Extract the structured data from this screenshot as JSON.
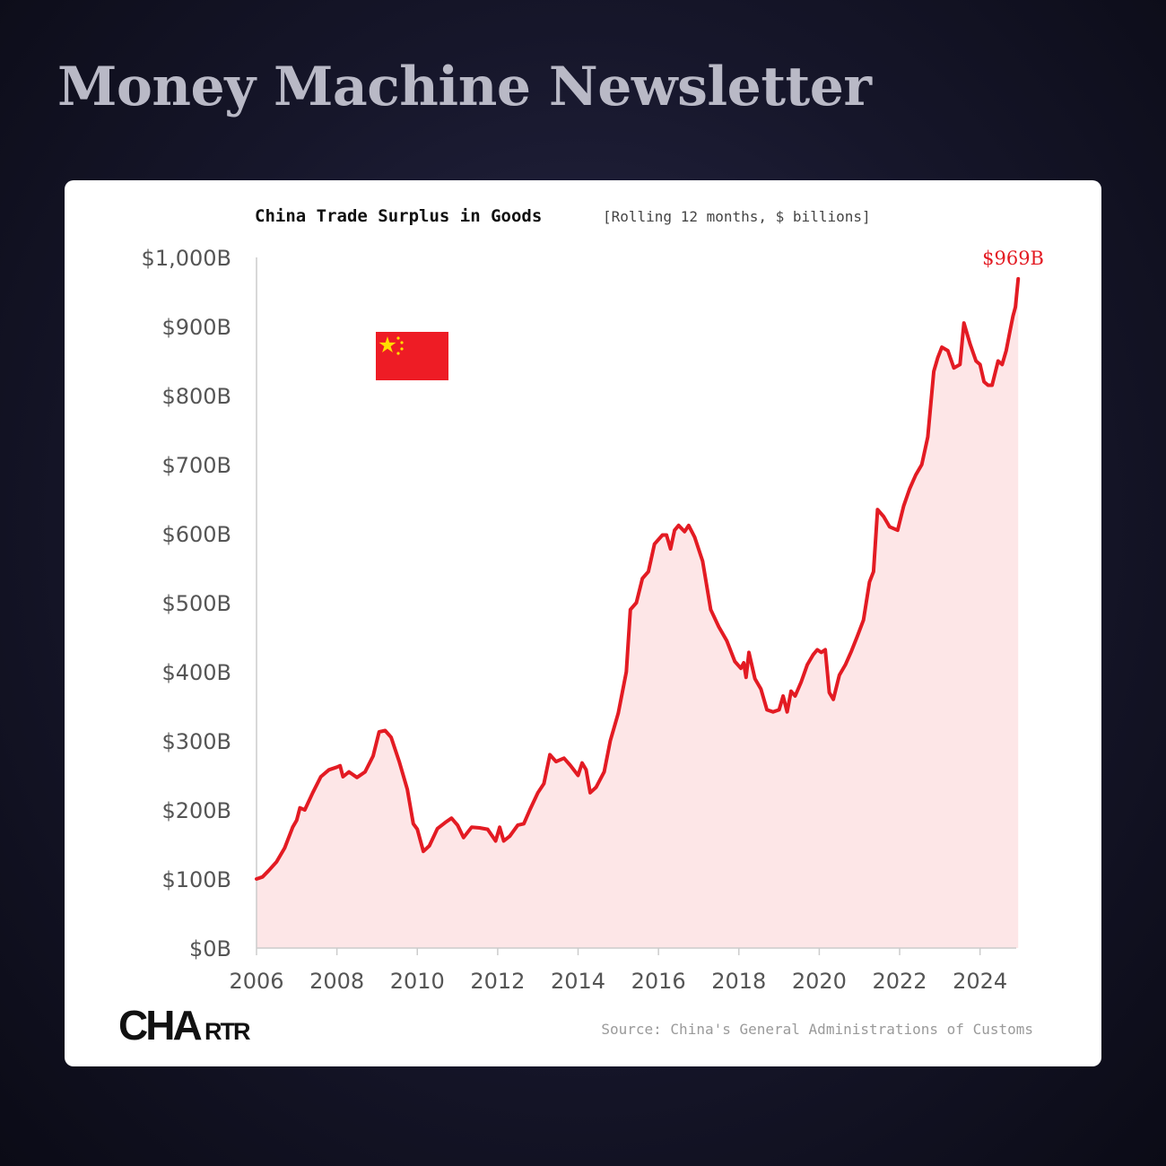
{
  "header": {
    "title": "Money Machine Newsletter"
  },
  "brand": {
    "logo_text": "CHARTR",
    "logo_main": "CHA",
    "logo_small": "RTR"
  },
  "colors": {
    "line": "#e31b23",
    "fill": "#fde6e7",
    "axis": "#cccccc",
    "flag_red": "#ee1c25",
    "flag_star": "#ffde00"
  },
  "chart_data": {
    "type": "area",
    "title": "China Trade Surplus in Goods",
    "subtitle": "[Rolling 12 months, $ billions]",
    "source": "Source: China's General Administrations of Customs",
    "icons": [
      "china-flag-icon"
    ],
    "end_label": "$969B",
    "ylim": [
      0,
      1000
    ],
    "xlim": [
      2006,
      2024.9
    ],
    "y_ticks": [
      {
        "value": 0,
        "label": "$0B"
      },
      {
        "value": 100,
        "label": "$100B"
      },
      {
        "value": 200,
        "label": "$200B"
      },
      {
        "value": 300,
        "label": "$300B"
      },
      {
        "value": 400,
        "label": "$400B"
      },
      {
        "value": 500,
        "label": "$500B"
      },
      {
        "value": 600,
        "label": "$600B"
      },
      {
        "value": 700,
        "label": "$700B"
      },
      {
        "value": 800,
        "label": "$800B"
      },
      {
        "value": 900,
        "label": "$900B"
      },
      {
        "value": 1000,
        "label": "$1,000B"
      }
    ],
    "x_ticks": [
      {
        "value": 2006,
        "label": "2006"
      },
      {
        "value": 2008,
        "label": "2008"
      },
      {
        "value": 2010,
        "label": "2010"
      },
      {
        "value": 2012,
        "label": "2012"
      },
      {
        "value": 2014,
        "label": "2014"
      },
      {
        "value": 2016,
        "label": "2016"
      },
      {
        "value": 2018,
        "label": "2018"
      },
      {
        "value": 2020,
        "label": "2020"
      },
      {
        "value": 2022,
        "label": "2022"
      },
      {
        "value": 2024,
        "label": "2024"
      }
    ],
    "series": [
      {
        "points": [
          [
            2006.0,
            100
          ],
          [
            2006.15,
            103
          ],
          [
            2006.3,
            112
          ],
          [
            2006.5,
            125
          ],
          [
            2006.7,
            145
          ],
          [
            2006.9,
            175
          ],
          [
            2007.0,
            185
          ],
          [
            2007.08,
            203
          ],
          [
            2007.2,
            200
          ],
          [
            2007.4,
            225
          ],
          [
            2007.6,
            248
          ],
          [
            2007.8,
            258
          ],
          [
            2008.0,
            262
          ],
          [
            2008.08,
            264
          ],
          [
            2008.15,
            248
          ],
          [
            2008.3,
            255
          ],
          [
            2008.5,
            247
          ],
          [
            2008.7,
            255
          ],
          [
            2008.9,
            278
          ],
          [
            2009.05,
            313
          ],
          [
            2009.2,
            315
          ],
          [
            2009.35,
            305
          ],
          [
            2009.55,
            270
          ],
          [
            2009.75,
            230
          ],
          [
            2009.9,
            180
          ],
          [
            2010.0,
            172
          ],
          [
            2010.15,
            140
          ],
          [
            2010.3,
            148
          ],
          [
            2010.5,
            173
          ],
          [
            2010.7,
            182
          ],
          [
            2010.85,
            188
          ],
          [
            2011.0,
            178
          ],
          [
            2011.15,
            160
          ],
          [
            2011.35,
            175
          ],
          [
            2011.55,
            174
          ],
          [
            2011.75,
            172
          ],
          [
            2011.95,
            155
          ],
          [
            2012.05,
            175
          ],
          [
            2012.15,
            155
          ],
          [
            2012.3,
            162
          ],
          [
            2012.5,
            178
          ],
          [
            2012.65,
            180
          ],
          [
            2012.8,
            200
          ],
          [
            2013.0,
            225
          ],
          [
            2013.15,
            238
          ],
          [
            2013.3,
            280
          ],
          [
            2013.45,
            270
          ],
          [
            2013.65,
            275
          ],
          [
            2013.8,
            265
          ],
          [
            2014.0,
            250
          ],
          [
            2014.1,
            268
          ],
          [
            2014.2,
            258
          ],
          [
            2014.3,
            225
          ],
          [
            2014.45,
            233
          ],
          [
            2014.65,
            255
          ],
          [
            2014.8,
            300
          ],
          [
            2015.0,
            340
          ],
          [
            2015.2,
            400
          ],
          [
            2015.3,
            490
          ],
          [
            2015.45,
            500
          ],
          [
            2015.6,
            535
          ],
          [
            2015.75,
            545
          ],
          [
            2015.9,
            585
          ],
          [
            2016.1,
            598
          ],
          [
            2016.2,
            598
          ],
          [
            2016.3,
            578
          ],
          [
            2016.4,
            605
          ],
          [
            2016.5,
            612
          ],
          [
            2016.65,
            603
          ],
          [
            2016.75,
            612
          ],
          [
            2016.9,
            595
          ],
          [
            2017.1,
            560
          ],
          [
            2017.3,
            490
          ],
          [
            2017.5,
            465
          ],
          [
            2017.7,
            445
          ],
          [
            2017.9,
            415
          ],
          [
            2018.05,
            405
          ],
          [
            2018.12,
            413
          ],
          [
            2018.18,
            392
          ],
          [
            2018.25,
            428
          ],
          [
            2018.4,
            390
          ],
          [
            2018.55,
            375
          ],
          [
            2018.7,
            345
          ],
          [
            2018.85,
            342
          ],
          [
            2019.0,
            345
          ],
          [
            2019.1,
            365
          ],
          [
            2019.2,
            342
          ],
          [
            2019.3,
            372
          ],
          [
            2019.4,
            365
          ],
          [
            2019.55,
            385
          ],
          [
            2019.7,
            410
          ],
          [
            2019.85,
            425
          ],
          [
            2019.95,
            432
          ],
          [
            2020.05,
            428
          ],
          [
            2020.15,
            432
          ],
          [
            2020.25,
            370
          ],
          [
            2020.35,
            360
          ],
          [
            2020.5,
            395
          ],
          [
            2020.65,
            410
          ],
          [
            2020.8,
            430
          ],
          [
            2020.95,
            452
          ],
          [
            2021.1,
            475
          ],
          [
            2021.25,
            530
          ],
          [
            2021.35,
            545
          ],
          [
            2021.45,
            635
          ],
          [
            2021.6,
            625
          ],
          [
            2021.75,
            610
          ],
          [
            2021.95,
            605
          ],
          [
            2022.1,
            640
          ],
          [
            2022.25,
            665
          ],
          [
            2022.4,
            685
          ],
          [
            2022.55,
            700
          ],
          [
            2022.7,
            740
          ],
          [
            2022.85,
            835
          ],
          [
            2022.95,
            855
          ],
          [
            2023.05,
            870
          ],
          [
            2023.2,
            865
          ],
          [
            2023.35,
            840
          ],
          [
            2023.5,
            845
          ],
          [
            2023.6,
            905
          ],
          [
            2023.75,
            875
          ],
          [
            2023.9,
            850
          ],
          [
            2024.0,
            845
          ],
          [
            2024.1,
            820
          ],
          [
            2024.2,
            815
          ],
          [
            2024.3,
            815
          ],
          [
            2024.45,
            850
          ],
          [
            2024.55,
            845
          ],
          [
            2024.65,
            865
          ],
          [
            2024.75,
            895
          ],
          [
            2024.82,
            915
          ],
          [
            2024.88,
            928
          ],
          [
            2024.95,
            969
          ]
        ]
      }
    ]
  }
}
